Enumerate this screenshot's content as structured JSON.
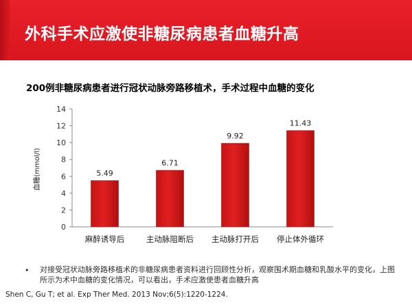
{
  "header": {
    "title": "外科手术应激使非糖尿病患者血糖升高",
    "color": "#e31b23"
  },
  "chart_data": {
    "type": "bar",
    "title": "200例非糖尿病患者进行冠状动脉旁路移植术，手术过程中血糖的变化",
    "xlabel": "",
    "ylabel": "血糖(mmol/l)",
    "categories": [
      "麻醉诱导后",
      "主动脉阻断后",
      "主动脉打开后",
      "停止体外循环"
    ],
    "values": [
      5.49,
      6.71,
      9.92,
      11.43
    ],
    "value_labels": [
      "5.49",
      "6.71",
      "9.92",
      "11.43"
    ],
    "ylim": [
      0,
      14
    ],
    "yticks": [
      "0",
      "2",
      "4",
      "6",
      "8",
      "10",
      "12",
      "14"
    ],
    "grid": false,
    "bar_color": "#e02020"
  },
  "notes": {
    "bullet": "•",
    "text": "对接受冠状动脉旁路移植术的非糖尿病患者资料进行回顾性分析，观察围术期血糖和乳酸水平的变化，上图所示为术中血糖的变化情况，可以看出，手术应激使患者血糖升高"
  },
  "citation": "Shen C, Gu T; et al. Exp Ther Med. 2013 Nov;6(5):1220-1224."
}
